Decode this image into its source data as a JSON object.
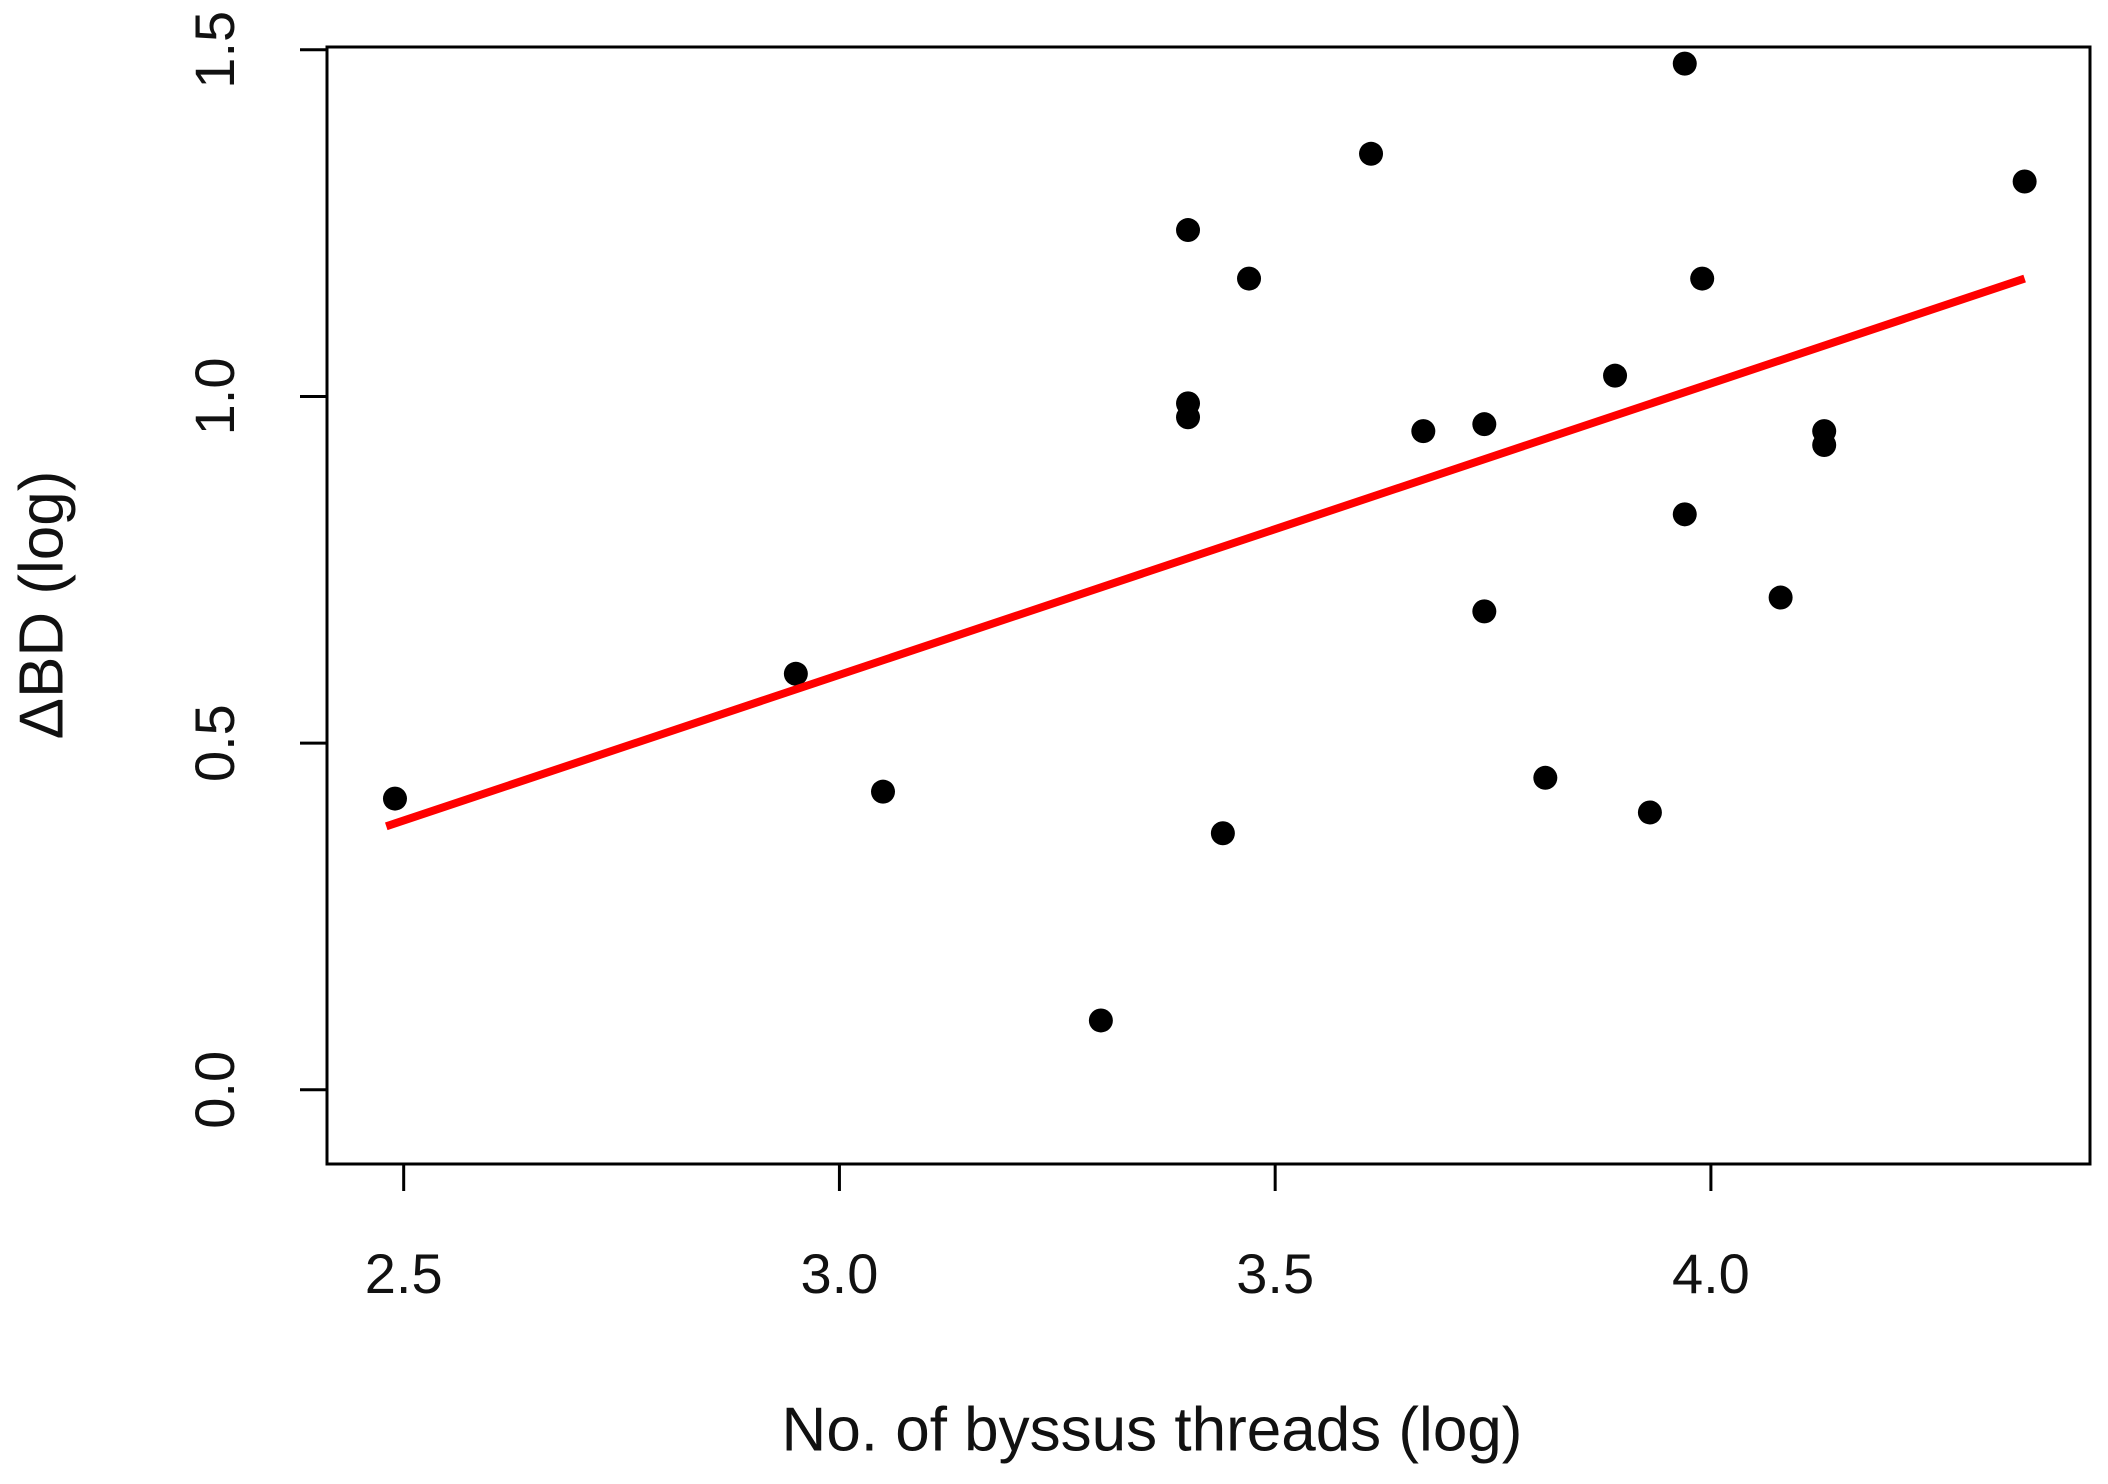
{
  "chart_data": {
    "type": "scatter",
    "x_label": "No. of byssus threads (log)",
    "y_label": "ΔBD (log)",
    "x": [
      2.49,
      2.95,
      3.05,
      3.3,
      3.4,
      3.4,
      3.4,
      3.44,
      3.47,
      3.61,
      3.67,
      3.74,
      3.74,
      3.81,
      3.89,
      3.93,
      3.97,
      3.97,
      3.99,
      4.08,
      4.13,
      4.13,
      4.36
    ],
    "values": [
      0.42,
      0.6,
      0.43,
      0.1,
      1.24,
      0.99,
      0.97,
      0.37,
      1.17,
      1.35,
      0.95,
      0.96,
      0.69,
      0.45,
      1.03,
      0.4,
      1.48,
      0.83,
      1.17,
      0.71,
      0.95,
      0.93,
      1.31
    ],
    "color": "#000000",
    "fit_line": {
      "x": [
        2.48,
        4.36
      ],
      "values": [
        0.38,
        1.17
      ],
      "color": "#ff0000"
    },
    "xlim": [
      2.412,
      4.435
    ],
    "ylim": [
      -0.107,
      1.504
    ],
    "xticks": [
      2.5,
      {
        "value": 3,
        "label": "3.0"
      },
      3.5,
      {
        "value": 4,
        "label": "4.0"
      }
    ],
    "yticks": [
      {
        "value": 0,
        "label": "0.0"
      },
      0.5,
      {
        "value": 1,
        "label": "1.0"
      },
      1.5
    ]
  }
}
